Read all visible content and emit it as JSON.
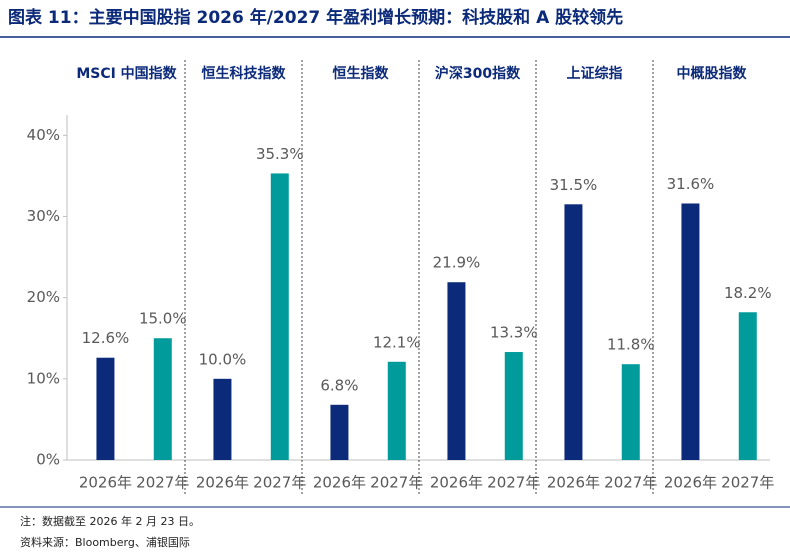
{
  "chart_data": {
    "type": "bar",
    "title": "图表 11：主要中国股指 2026 年/2027 年盈利增长预期：科技股和 A 股较领先",
    "categories": [
      "MSCI 中国指数",
      "恒生科技指数",
      "恒生指数",
      "沪深300指数",
      "上证综指",
      "中概股指数"
    ],
    "series": [
      {
        "name": "2026年",
        "color": "#0c2a7a",
        "values": [
          12.6,
          10.0,
          6.8,
          21.9,
          31.5,
          31.6
        ],
        "value_labels": [
          "12.6%",
          "10.0%",
          "6.8%",
          "21.9%",
          "31.5%",
          "31.6%"
        ]
      },
      {
        "name": "2027年",
        "color": "#009b9a",
        "values": [
          15.0,
          35.3,
          12.1,
          13.3,
          11.8,
          18.2
        ],
        "value_labels": [
          "15.0%",
          "35.3%",
          "12.1%",
          "13.3%",
          "11.8%",
          "18.2%"
        ]
      }
    ],
    "ylim": [
      0,
      42.5
    ],
    "yticks": [
      {
        "value": 0,
        "label": "0%"
      },
      {
        "value": 10,
        "label": "10%"
      },
      {
        "value": 20,
        "label": "20%"
      },
      {
        "value": 30,
        "label": "30%"
      },
      {
        "value": 40,
        "label": "40%"
      }
    ],
    "notes": [
      "注：数据截至 2026 年 2 月 23 日。",
      "资料来源：Bloomberg、浦银国际"
    ]
  }
}
